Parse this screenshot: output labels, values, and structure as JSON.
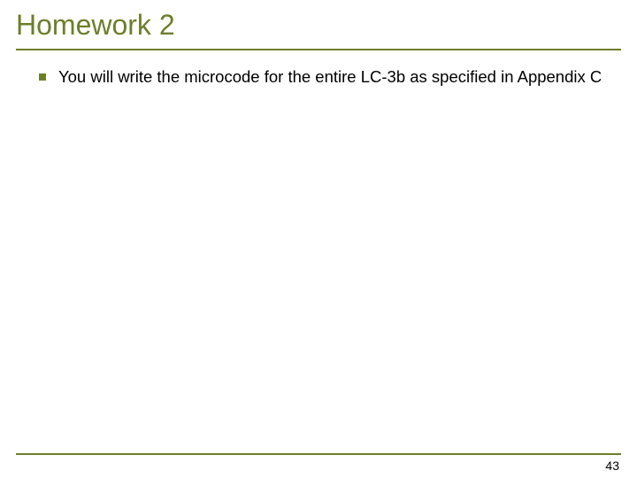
{
  "slide": {
    "title": "Homework 2",
    "title_color": "#6b7f2b",
    "title_fontsize": 32,
    "underline_color": "#6b7f2b",
    "bullets": [
      {
        "text": "You will write the microcode for the entire LC-3b as specified in Appendix C",
        "marker_color": "#6b7f2b",
        "text_color": "#000000",
        "fontsize": 18.5
      }
    ],
    "footer_line_color": "#6b7f2b",
    "page_number": "43",
    "background_color": "#ffffff"
  }
}
